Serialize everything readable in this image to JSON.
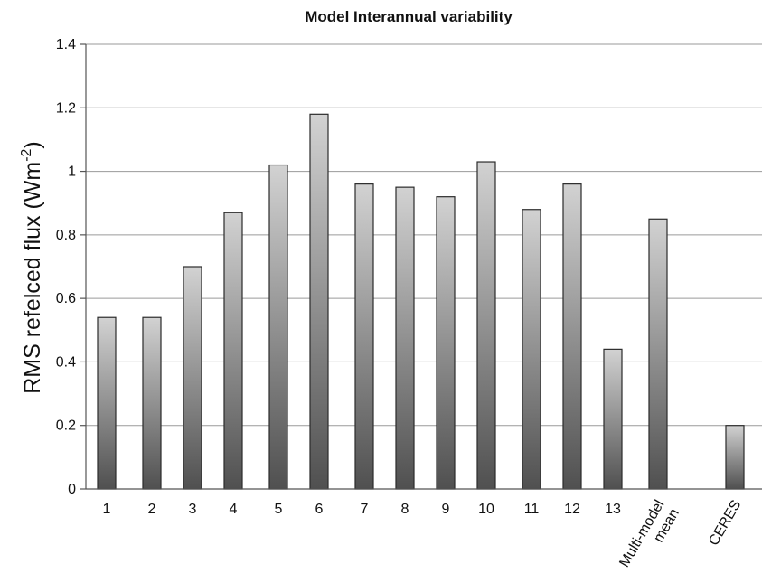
{
  "chart_data": {
    "type": "bar",
    "title": "Model Interannual variability",
    "ylabel": "RMS refelced flux (Wm",
    "ylabel_sup": "-2",
    "ylabel_suffix": ")",
    "xlabel": "",
    "ylim": [
      0,
      1.4
    ],
    "yticks": [
      "0",
      "0.2",
      "0.4",
      "0.6",
      "0.8",
      "1",
      "1.2",
      "1.4"
    ],
    "grid": true,
    "legend": "none",
    "bar_gradient": [
      "#d2d2d2",
      "#505050"
    ],
    "categories": [
      {
        "label": "1"
      },
      {
        "label": "2"
      },
      {
        "label": "3"
      },
      {
        "label": "4"
      },
      {
        "label": "5"
      },
      {
        "label": "6"
      },
      {
        "label": "7"
      },
      {
        "label": "8"
      },
      {
        "label": "9"
      },
      {
        "label": "10"
      },
      {
        "label": "11"
      },
      {
        "label": "12"
      },
      {
        "label": "13"
      },
      {
        "label": "Multi-model mean",
        "lines": [
          "Multi-model",
          "mean"
        ],
        "rotated": true
      },
      {
        "label": "CERES",
        "rotated": true
      }
    ],
    "values": [
      0.54,
      0.54,
      0.7,
      0.87,
      1.02,
      1.18,
      0.96,
      0.95,
      0.92,
      1.03,
      0.88,
      0.96,
      0.44,
      0.85,
      0.2
    ]
  }
}
